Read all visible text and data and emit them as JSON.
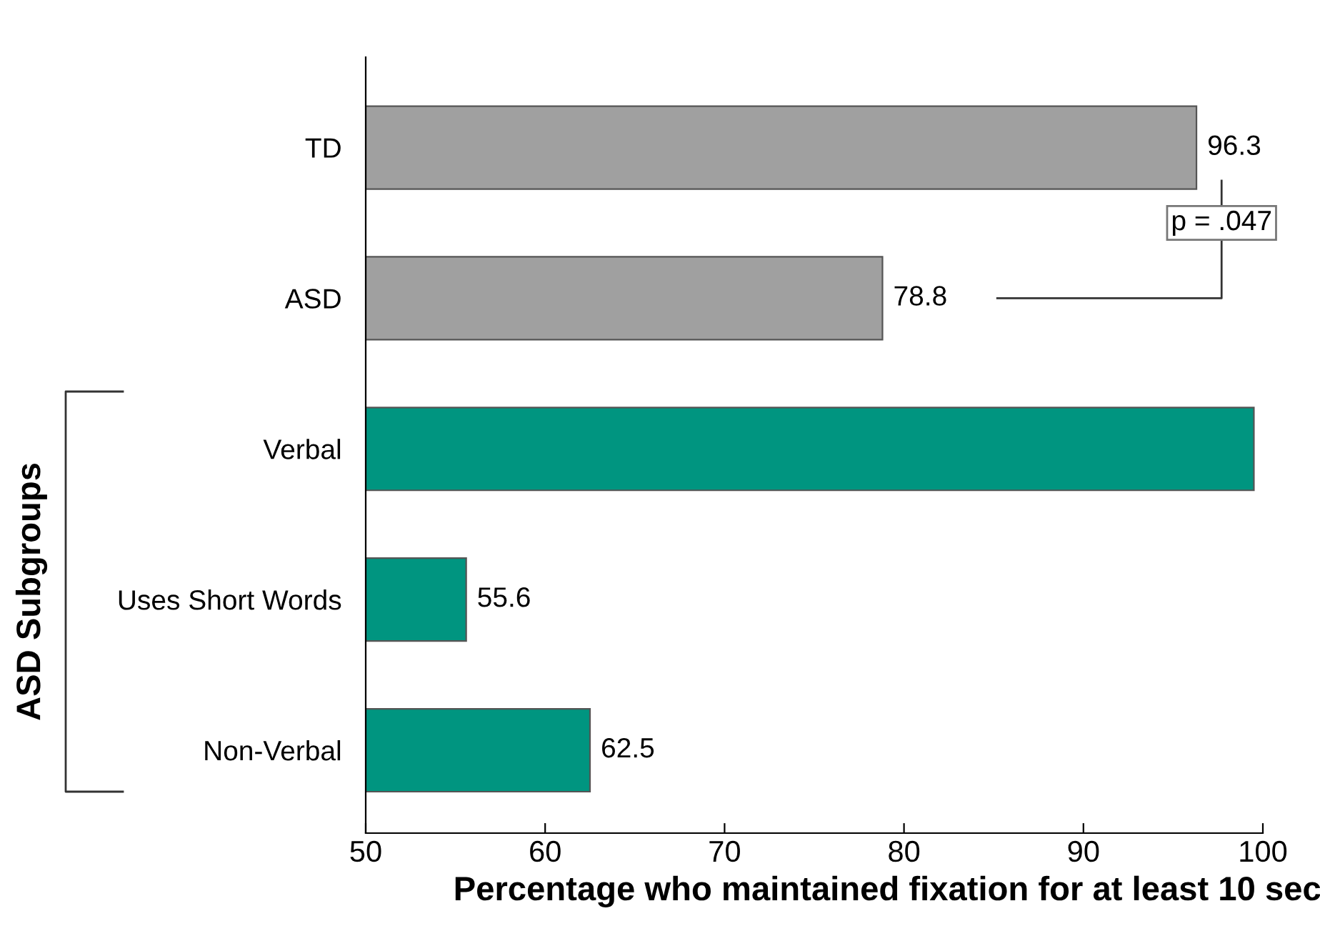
{
  "chart_data": {
    "type": "bar",
    "orientation": "horizontal",
    "xlabel": "Percentage who maintained fixation for at least 10 sec",
    "categories": [
      "TD",
      "ASD",
      "Verbal",
      "Uses Short Words",
      "Non-Verbal"
    ],
    "values": [
      96.3,
      78.8,
      99.5,
      55.6,
      62.5
    ],
    "value_labels": [
      "96.3",
      "78.8",
      null,
      "55.6",
      "62.5"
    ],
    "colors": [
      "#a0a0a0",
      "#a0a0a0",
      "#009580",
      "#009580",
      "#009580"
    ],
    "xlim": [
      50,
      100
    ],
    "xticks": [
      50,
      60,
      70,
      80,
      90,
      100
    ],
    "grid": false,
    "legend": false,
    "annotations": [
      "p = .047",
      "ASD Subgroups"
    ]
  }
}
